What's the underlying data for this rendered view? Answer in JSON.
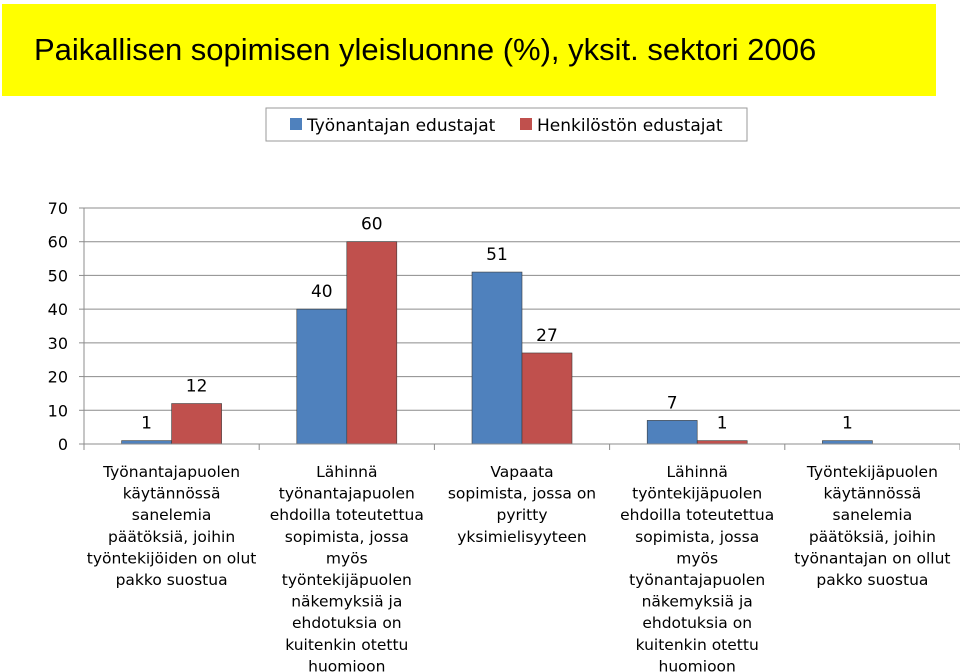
{
  "header": {
    "title": "Paikallisen sopimisen yleisluonne (%), yksit. sektori 2006"
  },
  "colors": {
    "title_background": "#ffff00",
    "series_1": "#4f81bd",
    "series_2": "#c0504d"
  },
  "chart_data": {
    "type": "bar",
    "title": "Paikallisen sopimisen yleisluonne (%), yksit. sektori 2006",
    "xlabel": "",
    "ylabel": "",
    "ylim": [
      0,
      70
    ],
    "yticks": [
      0,
      10,
      20,
      30,
      40,
      50,
      60,
      70
    ],
    "grid": true,
    "legend_position": "top",
    "categories": [
      [
        "Työnantajapuolen",
        "käytännössä",
        "sanelemia",
        "päätöksiä, joihin",
        "työntekijöiden on olut",
        "pakko suostua"
      ],
      [
        "Lähinnä",
        "työnantajapuolen",
        "ehdoilla toteutettua",
        "sopimista, jossa",
        "myös",
        "työntekijäpuolen",
        "näkemyksiä ja",
        "ehdotuksia on",
        "kuitenkin otettu",
        "huomioon"
      ],
      [
        "Vapaata",
        "sopimista, jossa on",
        "pyritty",
        "yksimielisyyteen"
      ],
      [
        "Lähinnä",
        "työntekijäpuolen",
        "ehdoilla toteutettua",
        "sopimista, jossa",
        "myös",
        "työnantajapuolen",
        "näkemyksiä ja",
        "ehdotuksia on",
        "kuitenkin otettu",
        "huomioon"
      ],
      [
        "Työntekijäpuolen",
        "käytännössä",
        "sanelemia",
        "päätöksiä, joihin",
        "työnantajan on ollut",
        "pakko suostua"
      ]
    ],
    "series": [
      {
        "name": "Työnantajan edustajat",
        "color": "#4f81bd",
        "values": [
          1,
          40,
          51,
          7,
          1
        ]
      },
      {
        "name": "Henkilöstön edustajat",
        "color": "#c0504d",
        "values": [
          12,
          60,
          27,
          1,
          null
        ]
      }
    ]
  }
}
